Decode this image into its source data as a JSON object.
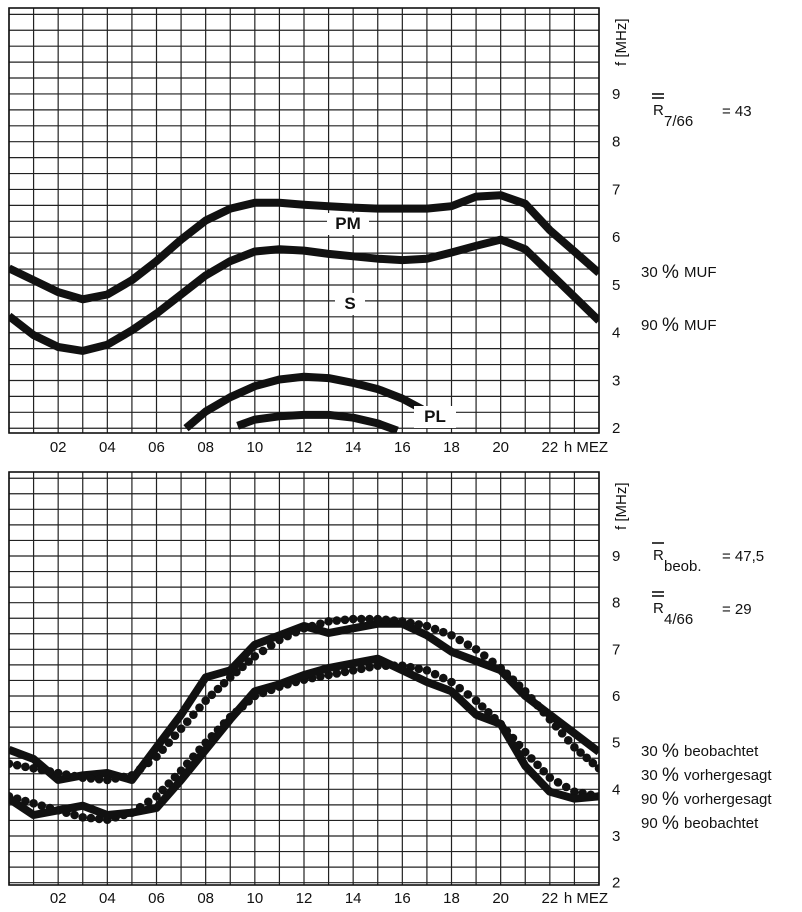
{
  "chart_data": [
    {
      "type": "line",
      "title": "",
      "xlabel": "h MEZ",
      "ylabel": "f [MHz]",
      "x_ticks": [
        "02",
        "04",
        "06",
        "08",
        "10",
        "12",
        "14",
        "16",
        "18",
        "20",
        "22"
      ],
      "y_ticks": [
        "2",
        "3",
        "4",
        "5",
        "6",
        "7",
        "8",
        "9"
      ],
      "xlim": [
        0,
        24
      ],
      "ylim": [
        1.9,
        10.8
      ],
      "grid": true,
      "annotations": {
        "r_symbol": "R",
        "r_subscript": "7/66",
        "r_value": "= 43",
        "labels": [
          "PM",
          "S",
          "PL"
        ]
      },
      "legend": [
        {
          "pct": "30",
          "unit": "%",
          "text": "MUF"
        },
        {
          "pct": "90",
          "unit": "%",
          "text": "MUF"
        }
      ],
      "series": [
        {
          "name": "PM",
          "style": "solid",
          "x": [
            0,
            1,
            2,
            3,
            4,
            5,
            6,
            7,
            8,
            9,
            10,
            11,
            12,
            13,
            14,
            15,
            16,
            17,
            18,
            19,
            20,
            21,
            22,
            23,
            24
          ],
          "y": [
            5.35,
            5.1,
            4.85,
            4.7,
            4.8,
            5.1,
            5.5,
            5.95,
            6.35,
            6.6,
            6.72,
            6.72,
            6.68,
            6.65,
            6.62,
            6.6,
            6.6,
            6.6,
            6.65,
            6.85,
            6.88,
            6.7,
            6.15,
            5.7,
            5.25
          ]
        },
        {
          "name": "S",
          "style": "solid",
          "x": [
            0,
            1,
            2,
            3,
            4,
            5,
            6,
            7,
            8,
            9,
            10,
            11,
            12,
            13,
            14,
            15,
            16,
            17,
            18,
            19,
            20,
            21,
            22,
            23,
            24
          ],
          "y": [
            4.35,
            3.95,
            3.7,
            3.62,
            3.75,
            4.05,
            4.4,
            4.8,
            5.2,
            5.5,
            5.7,
            5.75,
            5.72,
            5.65,
            5.6,
            5.55,
            5.52,
            5.55,
            5.68,
            5.82,
            5.95,
            5.75,
            5.25,
            4.75,
            4.25
          ]
        },
        {
          "name": "PL",
          "style": "solid",
          "x": [
            7.2,
            8,
            9,
            10,
            11,
            12,
            13,
            14,
            15,
            16,
            16.8
          ],
          "y": [
            2.0,
            2.35,
            2.65,
            2.88,
            3.02,
            3.08,
            3.05,
            2.95,
            2.82,
            2.62,
            2.4
          ]
        },
        {
          "name": "",
          "style": "solid",
          "x": [
            9.3,
            10,
            11,
            12,
            13,
            14,
            15,
            15.8
          ],
          "y": [
            2.05,
            2.18,
            2.25,
            2.28,
            2.28,
            2.22,
            2.1,
            1.95
          ]
        }
      ]
    },
    {
      "type": "line",
      "title": "",
      "xlabel": "h MEZ",
      "ylabel": "f [MHz]",
      "x_ticks": [
        "02",
        "04",
        "06",
        "08",
        "10",
        "12",
        "14",
        "16",
        "18",
        "20",
        "22"
      ],
      "y_ticks": [
        "2",
        "3",
        "4",
        "5",
        "6",
        "7",
        "8",
        "9"
      ],
      "xlim": [
        0,
        24
      ],
      "ylim": [
        1.95,
        10.8
      ],
      "grid": true,
      "annotations": {
        "r1_symbol": "R",
        "r1_subscript": "beob.",
        "r1_value": "= 47,5",
        "r2_symbol": "R",
        "r2_subscript": "4/66",
        "r2_value": "= 29"
      },
      "legend": [
        {
          "pct": "30",
          "unit": "%",
          "text": "beobachtet"
        },
        {
          "pct": "30",
          "unit": "%",
          "text": "vorhergesagt"
        },
        {
          "pct": "90",
          "unit": "%",
          "text": "vorhergesagt"
        },
        {
          "pct": "90",
          "unit": "%",
          "text": "beobachtet"
        }
      ],
      "series": [
        {
          "name": "30 % beobachtet",
          "style": "solid",
          "x": [
            0,
            1,
            2,
            3,
            4,
            5,
            6,
            7,
            8,
            9,
            10,
            11,
            12,
            13,
            14,
            15,
            16,
            17,
            18,
            19,
            20,
            21,
            22,
            23,
            24
          ],
          "y": [
            4.85,
            4.65,
            4.2,
            4.3,
            4.35,
            4.2,
            4.9,
            5.6,
            6.4,
            6.55,
            7.1,
            7.3,
            7.5,
            7.35,
            7.45,
            7.55,
            7.55,
            7.3,
            6.95,
            6.75,
            6.55,
            6.0,
            5.6,
            5.2,
            4.8
          ]
        },
        {
          "name": "30 % vorhergesagt",
          "style": "dotted",
          "x": [
            0,
            1,
            2,
            3,
            4,
            5,
            6,
            7,
            8,
            9,
            10,
            11,
            12,
            13,
            14,
            15,
            16,
            17,
            18,
            19,
            20,
            21,
            22,
            23,
            24
          ],
          "y": [
            4.55,
            4.45,
            4.35,
            4.25,
            4.2,
            4.3,
            4.7,
            5.3,
            5.9,
            6.4,
            6.85,
            7.2,
            7.45,
            7.6,
            7.65,
            7.65,
            7.6,
            7.5,
            7.3,
            7.0,
            6.6,
            6.1,
            5.5,
            4.9,
            4.45
          ]
        },
        {
          "name": "90 % vorhergesagt",
          "style": "dotted",
          "x": [
            0,
            1,
            2,
            3,
            4,
            5,
            6,
            7,
            8,
            9,
            10,
            11,
            12,
            13,
            14,
            15,
            16,
            17,
            18,
            19,
            20,
            21,
            22,
            23,
            24
          ],
          "y": [
            3.85,
            3.7,
            3.55,
            3.4,
            3.35,
            3.5,
            3.85,
            4.4,
            5.0,
            5.55,
            6.0,
            6.2,
            6.35,
            6.45,
            6.55,
            6.65,
            6.65,
            6.55,
            6.3,
            5.9,
            5.4,
            4.8,
            4.25,
            3.95,
            3.85
          ]
        },
        {
          "name": "90 % beobachtet",
          "style": "solid",
          "x": [
            0,
            1,
            2,
            3,
            4,
            5,
            6,
            7,
            8,
            9,
            10,
            11,
            12,
            13,
            14,
            15,
            16,
            17,
            18,
            19,
            20,
            21,
            22,
            23,
            24
          ],
          "y": [
            3.8,
            3.45,
            3.55,
            3.65,
            3.45,
            3.5,
            3.6,
            4.2,
            4.85,
            5.5,
            6.1,
            6.25,
            6.45,
            6.6,
            6.7,
            6.8,
            6.55,
            6.3,
            6.1,
            5.6,
            5.4,
            4.5,
            3.95,
            3.8,
            3.85
          ]
        }
      ]
    }
  ]
}
